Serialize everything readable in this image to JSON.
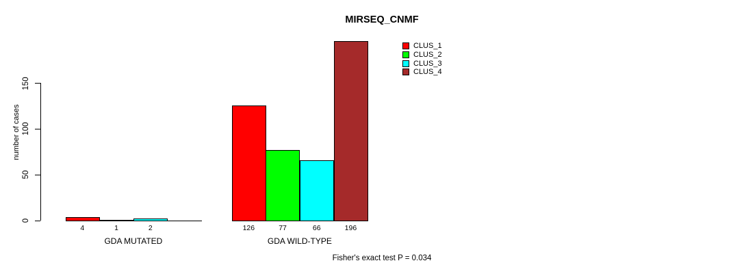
{
  "title": "MIRSEQ_CNMF",
  "footer": "Fisher's exact test P = 0.034",
  "chart_data": {
    "type": "bar",
    "title": "MIRSEQ_CNMF",
    "ylabel": "number of cases",
    "ylim": [
      0,
      150
    ],
    "yticks": [
      0,
      50,
      100,
      150
    ],
    "grid": false,
    "legend_position": "top-right",
    "categories": [
      "GDA MUTATED",
      "GDA WILD-TYPE"
    ],
    "series": [
      {
        "name": "CLUS_1",
        "color": "#ff0000",
        "values": [
          4,
          126
        ]
      },
      {
        "name": "CLUS_2",
        "color": "#00ff00",
        "values": [
          1,
          77
        ]
      },
      {
        "name": "CLUS_3",
        "color": "#00ffff",
        "values": [
          2,
          66
        ]
      },
      {
        "name": "CLUS_4",
        "color": "#a52a2a",
        "values": [
          0,
          196
        ]
      }
    ],
    "bar_value_labels": [
      [
        "4",
        "1",
        "2",
        ""
      ],
      [
        "126",
        "77",
        "66",
        "196"
      ]
    ],
    "annotation": "Fisher's exact test P = 0.034"
  }
}
